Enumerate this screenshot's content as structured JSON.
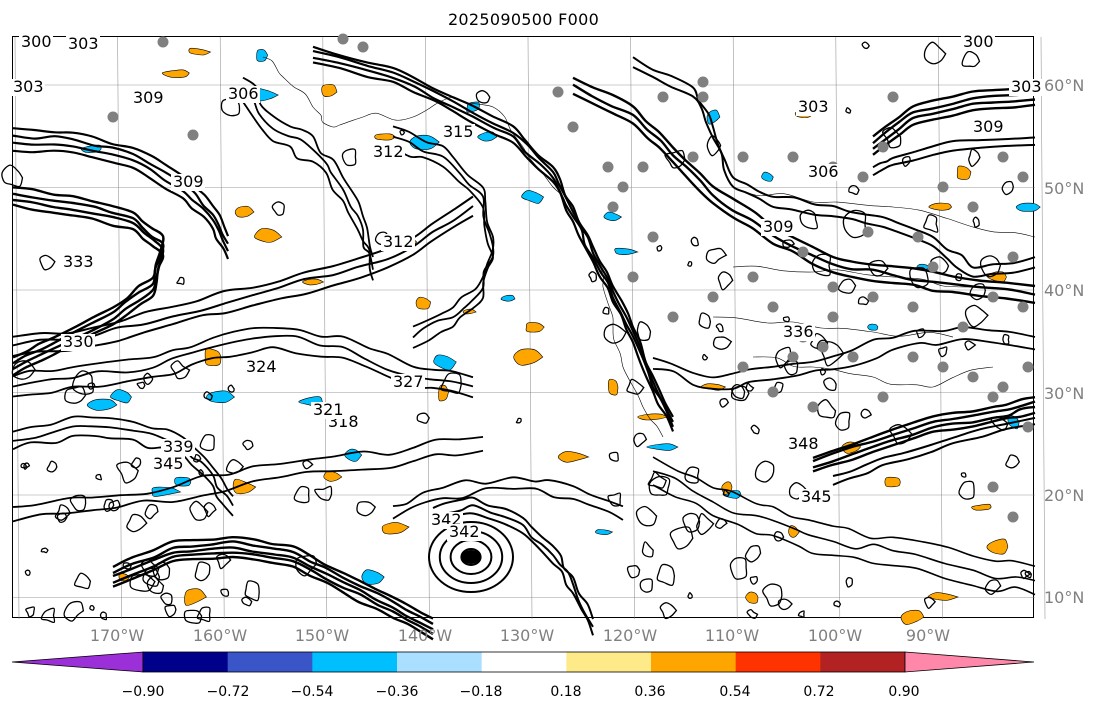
{
  "title": "2025090500 F000",
  "map": {
    "lat_labels": [
      "60°N",
      "50°N",
      "40°N",
      "30°N",
      "20°N",
      "10°N"
    ],
    "lon_labels": [
      "170°W",
      "160°W",
      "150°W",
      "140°W",
      "130°W",
      "120°W",
      "110°W",
      "100°W",
      "90°W"
    ],
    "contour_labels": [
      "300",
      "303",
      "303",
      "306",
      "309",
      "309",
      "312",
      "312",
      "315",
      "318",
      "321",
      "324",
      "327",
      "330",
      "333",
      "336",
      "339",
      "342",
      "345",
      "348",
      "303",
      "306",
      "309",
      "300",
      "303",
      "309",
      "342",
      "345"
    ],
    "contour_color": "#000000",
    "grid_color": "#808080",
    "marker_color": "#808080"
  },
  "colorbar": {
    "colors": [
      "#9b30d9",
      "#00008b",
      "#3a55c8",
      "#00bfff",
      "#aadfff",
      "#ffffff",
      "#ffea8a",
      "#ffa500",
      "#ff3300",
      "#b22222",
      "#ff88aa"
    ],
    "ticks": [
      "−0.90",
      "−0.72",
      "−0.54",
      "−0.36",
      "−0.18",
      "0.18",
      "0.36",
      "0.54",
      "0.72",
      "0.90"
    ]
  }
}
